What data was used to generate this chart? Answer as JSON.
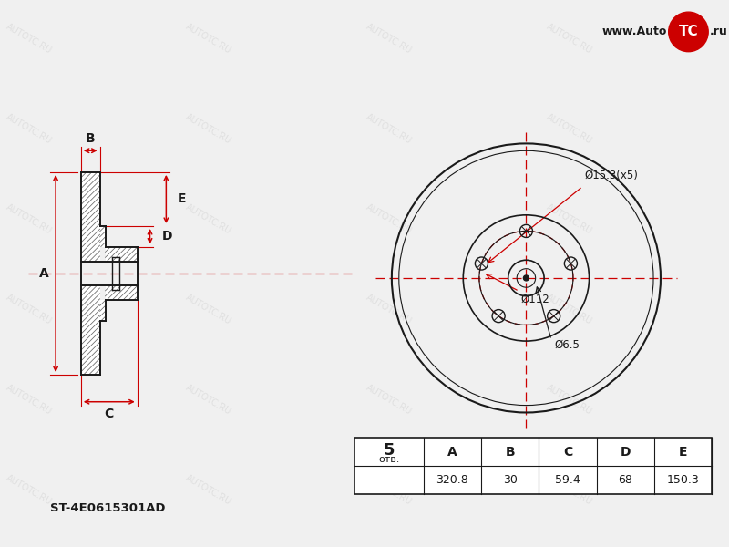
{
  "bg_color": "#f0f0f0",
  "line_color": "#1a1a1a",
  "red_color": "#cc0000",
  "watermark_text": "AUTOTC.RU",
  "watermark_color": "#cccccc",
  "part_number": "ST-4E0615301AD",
  "table_data": {
    "holes": "5",
    "holes_label": "отв.",
    "A": "320.8",
    "B": "30",
    "C": "59.4",
    "D": "68",
    "E": "150.3"
  },
  "annotations": {
    "phi15": "Ø15.3(x5)",
    "phi112": "Ø112",
    "phi6": "Ø6.5"
  }
}
